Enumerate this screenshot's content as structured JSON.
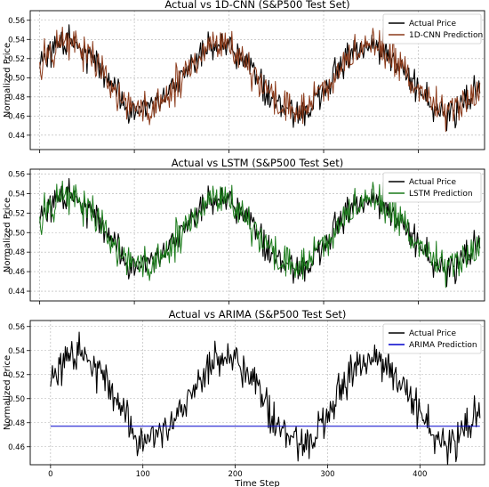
{
  "figure": {
    "xlabel": "Time Step"
  },
  "chart_data": [
    {
      "type": "line",
      "title": "Actual vs 1D-CNN (S&P500 Test Set)",
      "xlabel": "",
      "ylabel": "Normalized Price",
      "xlim": [
        -10,
        470
      ],
      "ylim": [
        0.425,
        0.57
      ],
      "xticks": [
        0,
        100,
        200,
        300,
        400
      ],
      "yticks": [
        0.44,
        0.46,
        0.48,
        0.5,
        0.52,
        0.54,
        0.56
      ],
      "ytick_labels": [
        "0.44",
        "0.46",
        "0.48",
        "0.50",
        "0.52",
        "0.54",
        "0.56"
      ],
      "grid": true,
      "legend_position": "top-right",
      "n_points": 466,
      "series": [
        {
          "name": "Actual Price",
          "color": "#000000",
          "mean": 0.5,
          "amplitude": 0.035,
          "period": 160,
          "phase": -10,
          "noise": 0.012
        },
        {
          "name": "1D-CNN Prediction",
          "color": "#8b3a1a",
          "mean": 0.5,
          "amplitude": 0.035,
          "period": 160,
          "phase": -10,
          "noise": 0.014
        }
      ]
    },
    {
      "type": "line",
      "title": "Actual vs LSTM (S&P500 Test Set)",
      "xlabel": "",
      "ylabel": "Normalized Price",
      "xlim": [
        -10,
        470
      ],
      "ylim": [
        0.43,
        0.565
      ],
      "xticks": [
        0,
        100,
        200,
        300,
        400
      ],
      "yticks": [
        0.44,
        0.46,
        0.48,
        0.5,
        0.52,
        0.54,
        0.56
      ],
      "ytick_labels": [
        "0.44",
        "0.46",
        "0.48",
        "0.50",
        "0.52",
        "0.54",
        "0.56"
      ],
      "grid": true,
      "legend_position": "top-right",
      "n_points": 466,
      "series": [
        {
          "name": "Actual Price",
          "color": "#000000",
          "mean": 0.5,
          "amplitude": 0.035,
          "period": 160,
          "phase": -10,
          "noise": 0.012
        },
        {
          "name": "LSTM Prediction",
          "color": "#1a7a1a",
          "mean": 0.5,
          "amplitude": 0.035,
          "period": 160,
          "phase": -10,
          "noise": 0.014
        }
      ]
    },
    {
      "type": "line",
      "title": "Actual vs ARIMA (S&P500 Test Set)",
      "xlabel": "Time Step",
      "ylabel": "Normalized Price",
      "xlim": [
        -22,
        470
      ],
      "ylim": [
        0.445,
        0.565
      ],
      "xticks": [
        0,
        100,
        200,
        300,
        400
      ],
      "xtick_labels": [
        "0",
        "100",
        "200",
        "300",
        "400"
      ],
      "yticks": [
        0.46,
        0.48,
        0.5,
        0.52,
        0.54,
        0.56
      ],
      "ytick_labels": [
        "0.46",
        "0.48",
        "0.50",
        "0.52",
        "0.54",
        "0.56"
      ],
      "grid": true,
      "legend_position": "top-right",
      "n_points": 466,
      "series": [
        {
          "name": "Actual Price",
          "color": "#000000",
          "mean": 0.5,
          "amplitude": 0.035,
          "period": 160,
          "phase": -10,
          "noise": 0.012
        },
        {
          "name": "ARIMA Prediction",
          "color": "#0000cc",
          "constant": 0.477
        }
      ]
    }
  ]
}
